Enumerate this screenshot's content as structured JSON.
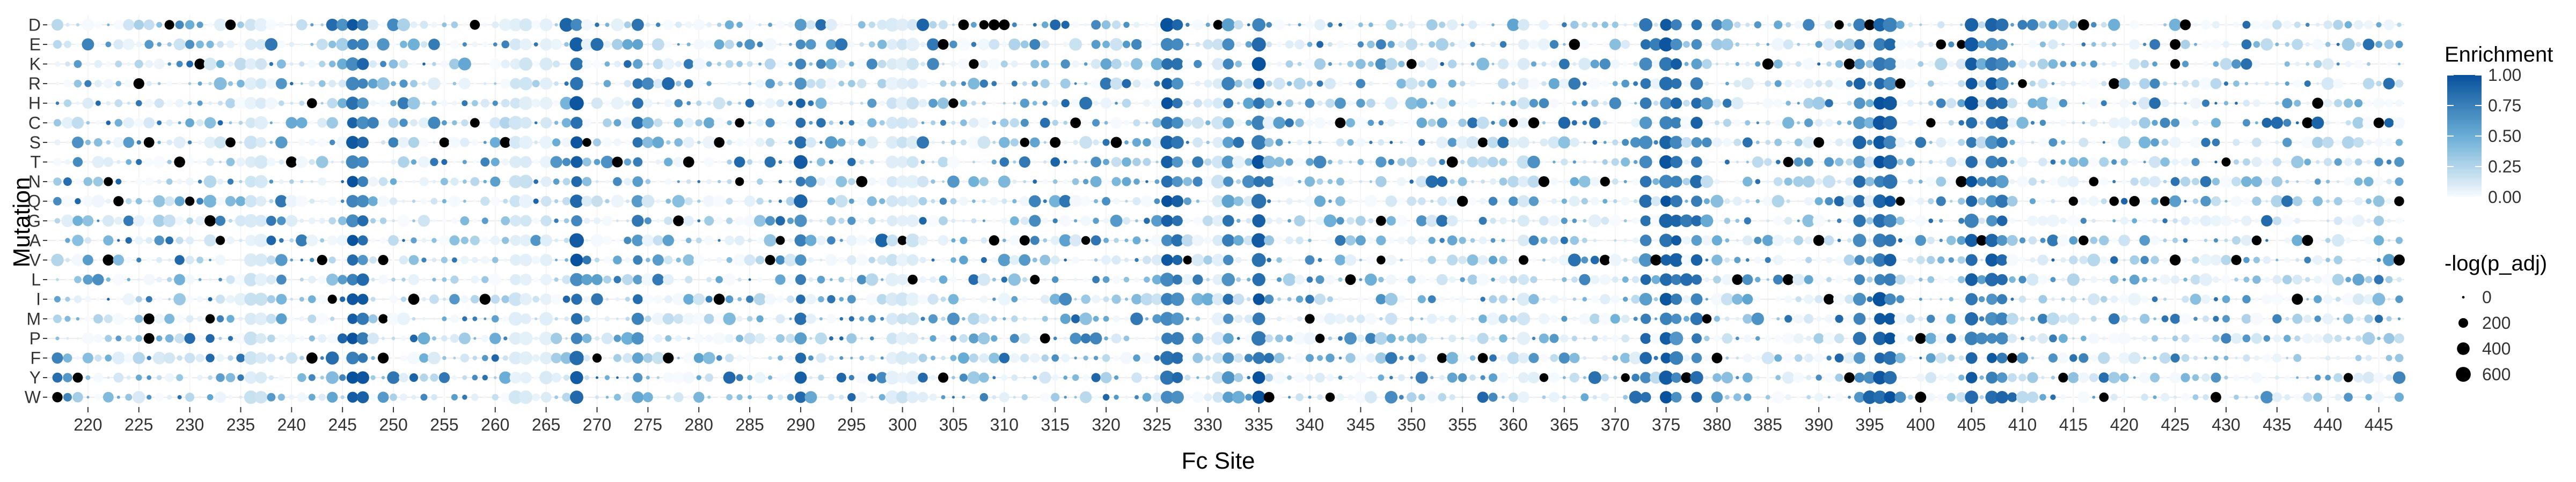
{
  "chart_data": {
    "type": "scatter",
    "subtype": "dot-heatmap",
    "xlabel": "Fc Site",
    "ylabel": "Mutation",
    "mutations": [
      "D",
      "E",
      "K",
      "R",
      "H",
      "C",
      "S",
      "T",
      "N",
      "Q",
      "G",
      "A",
      "V",
      "L",
      "I",
      "M",
      "P",
      "F",
      "Y",
      "W"
    ],
    "sites_start": 217,
    "sites_end": 447,
    "xlim": [
      216,
      447.5
    ],
    "x_ticks": [
      220,
      225,
      230,
      235,
      240,
      245,
      250,
      255,
      260,
      265,
      270,
      275,
      280,
      285,
      290,
      295,
      300,
      305,
      310,
      315,
      320,
      325,
      330,
      335,
      340,
      345,
      350,
      355,
      360,
      365,
      370,
      375,
      380,
      385,
      390,
      395,
      400,
      405,
      410,
      415,
      420,
      425,
      430,
      435,
      440,
      445
    ],
    "grid": true,
    "color_legend": {
      "title": "Enrichment",
      "labels": [
        "1.00",
        "0.75",
        "0.50",
        "0.25",
        "0.00"
      ],
      "low_color": "#f7fbff",
      "mid_color": "#6baed6",
      "high_color": "#08519c",
      "placement": "right"
    },
    "size_legend": {
      "title": "-log(p_adj)",
      "labels": [
        "0",
        "200",
        "400",
        "600"
      ],
      "values": [
        0,
        200,
        400,
        600
      ],
      "placement": "right"
    },
    "highlight_columns": [
      {
        "site": 246,
        "enrichment": 0.85,
        "neglogp": 380
      },
      {
        "site": 247,
        "enrichment": 0.8,
        "neglogp": 330
      },
      {
        "site": 268,
        "enrichment": 0.85,
        "neglogp": 450
      },
      {
        "site": 274,
        "enrichment": 0.7,
        "neglogp": 300
      },
      {
        "site": 290,
        "enrichment": 0.75,
        "neglogp": 300
      },
      {
        "site": 326,
        "enrichment": 0.85,
        "neglogp": 420
      },
      {
        "site": 327,
        "enrichment": 0.75,
        "neglogp": 360
      },
      {
        "site": 332,
        "enrichment": 0.7,
        "neglogp": 360
      },
      {
        "site": 335,
        "enrichment": 0.9,
        "neglogp": 460
      },
      {
        "site": 373,
        "enrichment": 0.75,
        "neglogp": 380
      },
      {
        "site": 375,
        "enrichment": 0.85,
        "neglogp": 420
      },
      {
        "site": 376,
        "enrichment": 0.8,
        "neglogp": 380
      },
      {
        "site": 378,
        "enrichment": 0.75,
        "neglogp": 360
      },
      {
        "site": 394,
        "enrichment": 0.75,
        "neglogp": 360
      },
      {
        "site": 396,
        "enrichment": 0.9,
        "neglogp": 460
      },
      {
        "site": 397,
        "enrichment": 0.85,
        "neglogp": 440
      },
      {
        "site": 405,
        "enrichment": 0.85,
        "neglogp": 420
      },
      {
        "site": 407,
        "enrichment": 0.8,
        "neglogp": 380
      },
      {
        "site": 408,
        "enrichment": 0.75,
        "neglogp": 360
      }
    ],
    "highlight_points": [
      {
        "site": 267,
        "mutation": "D",
        "enrichment": 0.9,
        "neglogp": 500
      },
      {
        "site": 238,
        "mutation": "E",
        "enrichment": 0.8,
        "neglogp": 400
      },
      {
        "site": 270,
        "mutation": "E",
        "enrichment": 0.85,
        "neglogp": 420
      },
      {
        "site": 405,
        "mutation": "E",
        "enrichment": 0.95,
        "neglogp": 520
      },
      {
        "site": 396,
        "mutation": "D",
        "enrichment": 0.9,
        "neglogp": 450
      },
      {
        "site": 290,
        "mutation": "T",
        "enrichment": 0.95,
        "neglogp": 500
      },
      {
        "site": 290,
        "mutation": "Q",
        "enrichment": 0.9,
        "neglogp": 480
      },
      {
        "site": 298,
        "mutation": "A",
        "enrichment": 0.9,
        "neglogp": 480
      },
      {
        "site": 395,
        "mutation": "W",
        "enrichment": 0.9,
        "neglogp": 480
      },
      {
        "site": 378,
        "mutation": "Y",
        "enrichment": 0.85,
        "neglogp": 440
      },
      {
        "site": 372,
        "mutation": "W",
        "enrichment": 0.85,
        "neglogp": 420
      },
      {
        "site": 244,
        "mutation": "F",
        "enrichment": 0.85,
        "neglogp": 440
      },
      {
        "site": 407,
        "mutation": "W",
        "enrichment": 0.85,
        "neglogp": 440
      },
      {
        "site": 250,
        "mutation": "Y",
        "enrichment": 0.8,
        "neglogp": 400
      },
      {
        "site": 302,
        "mutation": "S",
        "enrichment": 0.8,
        "neglogp": 380
      }
    ],
    "pale_columns": [
      236,
      237,
      262,
      263,
      265,
      299,
      300,
      301,
      331,
      332,
      361
    ],
    "saturated_points_color": "#000000"
  }
}
